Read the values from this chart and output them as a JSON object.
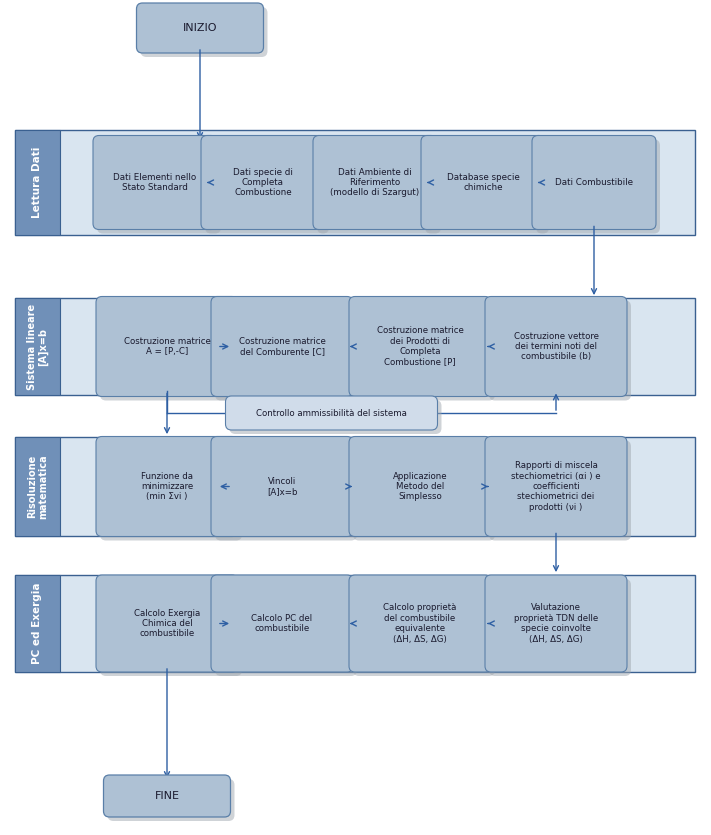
{
  "bg_color": "#ffffff",
  "box_fill": "#aec1d4",
  "box_fill2": "#b8cedd",
  "box_edge": "#5a7fa8",
  "section_fill": "#d9e5f0",
  "section_edge": "#3a6090",
  "tab_fill": "#7090b8",
  "arrow_color": "#2e5fa3",
  "text_color": "#1a1a2e",
  "feedback_fill": "#d0dcea",
  "inizio_text": "INIZIO",
  "fine_text": "FINE",
  "section1_label": "Lettura Dati",
  "section2_label": "Sistema lineare\n[A]x=b",
  "section3_label": "Risoluzione\nmatematica",
  "section4_label": "PC ed Exergia",
  "row1_boxes": [
    "Dati Elementi nello\nStato Standard",
    "Dati specie di\nCompleta\nCombustione",
    "Dati Ambiente di\nRiferimento\n(modello di Szargut)",
    "Database specie\nchimiche",
    "Dati Combustibile"
  ],
  "row2_boxes": [
    "Costruzione matrice\nA = [P,-C]",
    "Costruzione matrice\ndel Comburente [C]",
    "Costruzione matrice\ndei Prodotti di\nCompleta\nCombustione [P]",
    "Costruzione vettore\ndei termini noti del\ncombustibile (b)"
  ],
  "row2_feedback_label": "Controllo ammissibilità del sistema",
  "row3_boxes": [
    "Funzione da\nminimizzare\n(min Σvi )",
    "Vincoli\n[A]x=b",
    "Applicazione\nMetodo del\nSimplesso",
    "Rapporti di miscela\nstechiometrici (αi ) e\ncoefficienti\nstechiometrici dei\nprodotti (νi )"
  ],
  "row4_boxes": [
    "Calcolo Exergia\nChimica del\ncombustibile",
    "Calcolo PC del\ncombustibile",
    "Calcolo proprietà\ndel combustibile\nequivalente\n(ΔH, ΔS, ΔG)",
    "Valutazione\nproprietà TDN delle\nspecie coinvolte\n(ΔH, ΔS, ΔG)"
  ]
}
